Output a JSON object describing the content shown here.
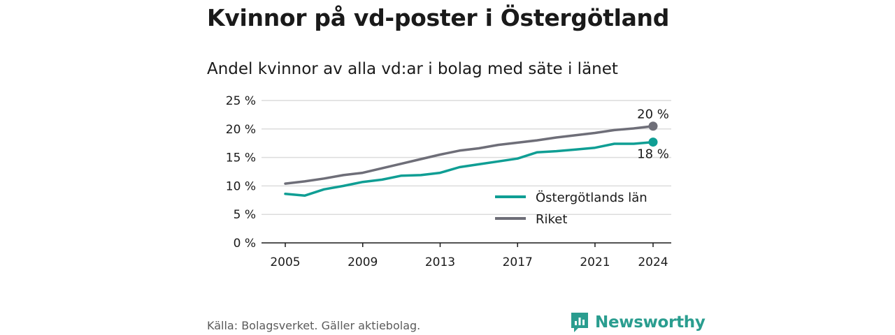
{
  "title": "Kvinnor på vd-poster i Östergötland",
  "subtitle": "Andel kvinnor av alla vd:ar i bolag med säte i länet",
  "source": "Källa: Bolagsverket. Gäller aktiebolag.",
  "brand": "Newsworthy",
  "colors": {
    "ostergotland": "#0f9e94",
    "riket": "#6e6e78",
    "grid": "#dcdcdc",
    "axis": "#1a1a1a",
    "brand": "#2a9d8f"
  },
  "chart_data": {
    "type": "line",
    "title": "Kvinnor på vd-poster i Östergötland",
    "subtitle": "Andel kvinnor av alla vd:ar i bolag med säte i länet",
    "xlabel": "",
    "ylabel": "",
    "x": [
      2005,
      2006,
      2007,
      2008,
      2009,
      2010,
      2011,
      2012,
      2013,
      2014,
      2015,
      2016,
      2017,
      2018,
      2019,
      2020,
      2021,
      2022,
      2023,
      2024
    ],
    "xticks": [
      "2005",
      "2009",
      "2013",
      "2017",
      "2021",
      "2024"
    ],
    "xlim": [
      2005,
      2024
    ],
    "yticks": [
      "0 %",
      "5 %",
      "10 %",
      "15 %",
      "20 %",
      "25 %"
    ],
    "ylim": [
      0,
      25
    ],
    "grid": true,
    "legend_position": "bottom-right",
    "series": [
      {
        "name": "Östergötlands län",
        "color_key": "ostergotland",
        "values": [
          8.6,
          8.3,
          9.4,
          10.0,
          10.7,
          11.1,
          11.8,
          11.9,
          12.3,
          13.3,
          13.8,
          14.3,
          14.8,
          15.9,
          16.1,
          16.4,
          16.7,
          17.4,
          17.4,
          17.7
        ],
        "end_label": "18 %"
      },
      {
        "name": "Riket",
        "color_key": "riket",
        "values": [
          10.4,
          10.8,
          11.3,
          11.9,
          12.3,
          13.1,
          13.9,
          14.7,
          15.5,
          16.2,
          16.6,
          17.2,
          17.6,
          18.0,
          18.5,
          18.9,
          19.3,
          19.8,
          20.1,
          20.5
        ],
        "end_label": "20 %"
      }
    ]
  }
}
